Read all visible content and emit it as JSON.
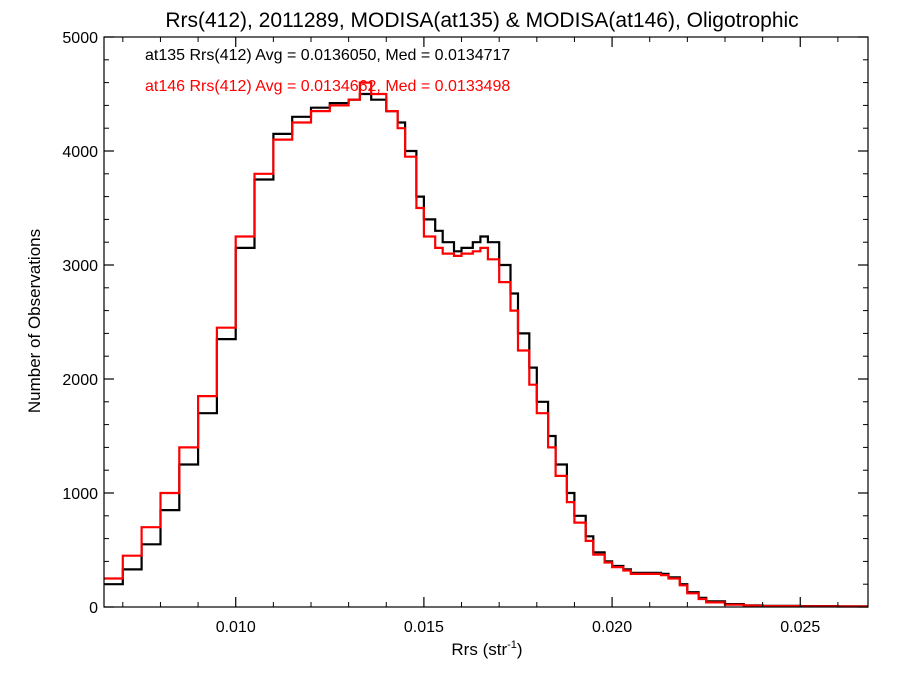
{
  "chart_data": {
    "type": "line",
    "title": "Rrs(412), 2011289, MODISA(at135) & MODISA(at146), Oligotrophic",
    "xlabel": "Rrs (str",
    "xlabel_sup": "-1",
    "xlabel_end": ")",
    "ylabel": "Number of Observations",
    "xlim": [
      0.0065,
      0.0268
    ],
    "ylim": [
      0,
      5000
    ],
    "x_ticks": [
      0.01,
      0.015,
      0.02,
      0.025
    ],
    "x_tick_labels": [
      "0.010",
      "0.015",
      "0.020",
      "0.025"
    ],
    "y_ticks": [
      0,
      1000,
      2000,
      3000,
      4000,
      5000
    ],
    "y_tick_labels": [
      "0",
      "1000",
      "2000",
      "3000",
      "4000",
      "5000"
    ],
    "grid": false,
    "legend_position": "top-left",
    "series": [
      {
        "name": "at135",
        "color": "#000000",
        "stats_label": "at135 Rrs(412) Avg = 0.0136050, Med = 0.0134717",
        "x": [
          0.0065,
          0.007,
          0.0075,
          0.008,
          0.0085,
          0.009,
          0.0095,
          0.01,
          0.0105,
          0.011,
          0.0115,
          0.012,
          0.0125,
          0.013,
          0.0133,
          0.0136,
          0.014,
          0.0143,
          0.0145,
          0.0148,
          0.015,
          0.0153,
          0.0155,
          0.0158,
          0.016,
          0.0163,
          0.0165,
          0.0167,
          0.017,
          0.0173,
          0.0175,
          0.0178,
          0.018,
          0.0183,
          0.0185,
          0.0188,
          0.019,
          0.0193,
          0.0195,
          0.0198,
          0.02,
          0.0203,
          0.0205,
          0.0208,
          0.021,
          0.0213,
          0.0215,
          0.0218,
          0.022,
          0.0223,
          0.0225,
          0.023,
          0.0235,
          0.024,
          0.025,
          0.026,
          0.0268
        ],
        "y": [
          200,
          330,
          550,
          850,
          1250,
          1700,
          2350,
          3150,
          3750,
          4150,
          4300,
          4380,
          4420,
          4450,
          4500,
          4450,
          4350,
          4250,
          4000,
          3600,
          3400,
          3300,
          3200,
          3120,
          3150,
          3200,
          3250,
          3200,
          3000,
          2750,
          2400,
          2100,
          1800,
          1500,
          1250,
          1000,
          800,
          620,
          480,
          400,
          360,
          330,
          300,
          300,
          300,
          290,
          260,
          200,
          130,
          80,
          50,
          25,
          15,
          10,
          8,
          5,
          5
        ]
      },
      {
        "name": "at146",
        "color": "#ff0000",
        "stats_label": "at146 Rrs(412) Avg = 0.0134662, Med = 0.0133498",
        "x": [
          0.0065,
          0.007,
          0.0075,
          0.008,
          0.0085,
          0.009,
          0.0095,
          0.01,
          0.0105,
          0.011,
          0.0115,
          0.012,
          0.0125,
          0.013,
          0.0133,
          0.0136,
          0.014,
          0.0143,
          0.0145,
          0.0148,
          0.015,
          0.0153,
          0.0155,
          0.0158,
          0.016,
          0.0163,
          0.0165,
          0.0167,
          0.017,
          0.0173,
          0.0175,
          0.0178,
          0.018,
          0.0183,
          0.0185,
          0.0188,
          0.019,
          0.0193,
          0.0195,
          0.0198,
          0.02,
          0.0203,
          0.0205,
          0.0208,
          0.021,
          0.0213,
          0.0215,
          0.0218,
          0.022,
          0.0223,
          0.0225,
          0.023,
          0.0235,
          0.024,
          0.025,
          0.026,
          0.0268
        ],
        "y": [
          250,
          450,
          700,
          1000,
          1400,
          1850,
          2450,
          3250,
          3800,
          4100,
          4250,
          4350,
          4400,
          4450,
          4600,
          4500,
          4350,
          4200,
          3950,
          3500,
          3250,
          3150,
          3100,
          3080,
          3100,
          3120,
          3150,
          3050,
          2850,
          2600,
          2250,
          1950,
          1700,
          1400,
          1150,
          920,
          740,
          580,
          460,
          390,
          350,
          320,
          290,
          290,
          290,
          280,
          250,
          190,
          120,
          70,
          40,
          20,
          12,
          8,
          6,
          4,
          4
        ]
      }
    ]
  }
}
